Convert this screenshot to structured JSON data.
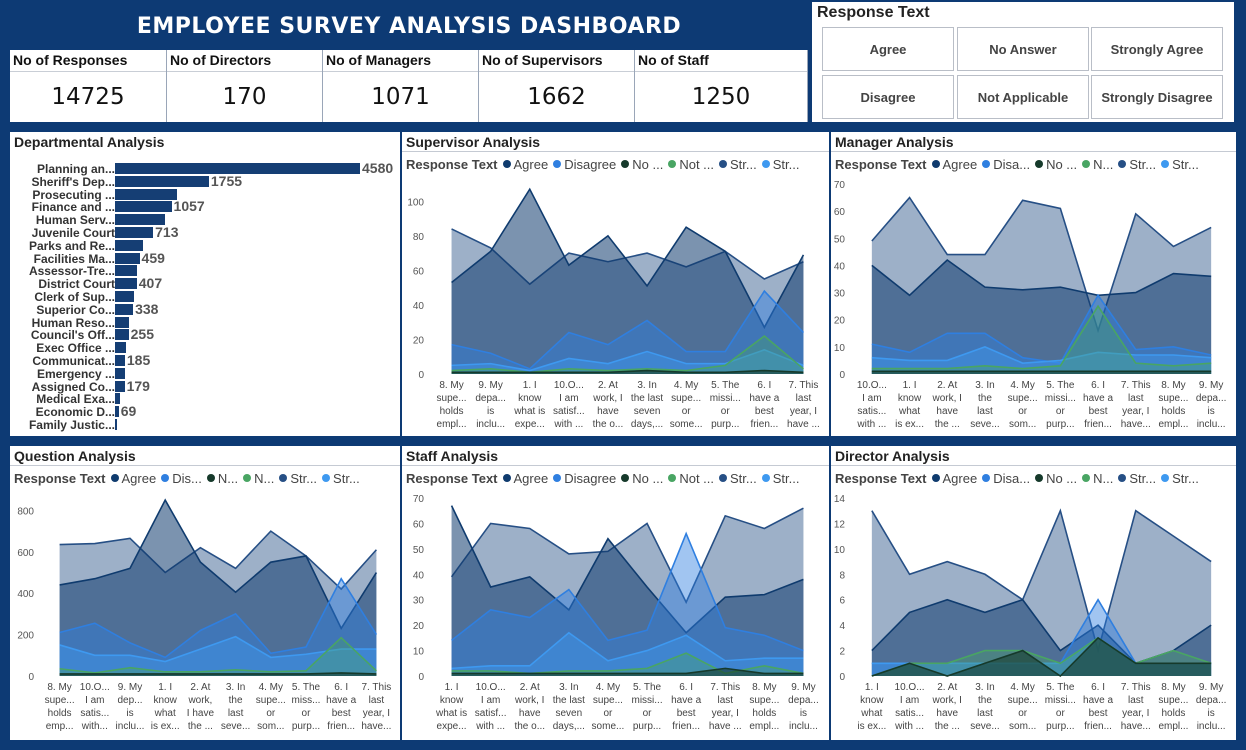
{
  "title": "EMPLOYEE SURVEY ANALYSIS DASHBOARD",
  "kpis": [
    {
      "label": "No of Responses",
      "value": "14725"
    },
    {
      "label": "No of Directors",
      "value": "170"
    },
    {
      "label": "No of Managers",
      "value": "1071"
    },
    {
      "label": "No of Supervisors",
      "value": "1662"
    },
    {
      "label": "No of Staff",
      "value": "1250"
    }
  ],
  "response_filter": {
    "title": "Response Text",
    "options": [
      "Agree",
      "No Answer",
      "Strongly Agree",
      "Disagree",
      "Not Applicable",
      "Strongly Disagree"
    ]
  },
  "colors": {
    "agree": "#0f3b6e",
    "disagree": "#2f7fe0",
    "no_answer": "#163a2b",
    "not_applicable": "#49a563",
    "strongly_agree": "#264f85",
    "strongly_disagree": "#3e99f0",
    "dept_bar": "#153e74"
  },
  "departmental": {
    "title": "Departmental Analysis",
    "rows": [
      {
        "label": "Planning an...",
        "value": 4580,
        "show": "4580"
      },
      {
        "label": "Sheriff's Dep...",
        "value": 1755,
        "show": "1755"
      },
      {
        "label": "Prosecuting ...",
        "value": 1150,
        "show": ""
      },
      {
        "label": "Finance and ...",
        "value": 1057,
        "show": "1057"
      },
      {
        "label": "Human Serv...",
        "value": 930,
        "show": ""
      },
      {
        "label": "Juvenile Court",
        "value": 713,
        "show": "713"
      },
      {
        "label": "Parks and Re...",
        "value": 520,
        "show": ""
      },
      {
        "label": "Facilities Ma...",
        "value": 459,
        "show": "459"
      },
      {
        "label": "Assessor-Tre...",
        "value": 420,
        "show": ""
      },
      {
        "label": "District Court",
        "value": 407,
        "show": "407"
      },
      {
        "label": "Clerk of Sup...",
        "value": 350,
        "show": ""
      },
      {
        "label": "Superior Co...",
        "value": 338,
        "show": "338"
      },
      {
        "label": "Human Reso...",
        "value": 270,
        "show": ""
      },
      {
        "label": "Council's Off...",
        "value": 255,
        "show": "255"
      },
      {
        "label": "Exec Office ...",
        "value": 210,
        "show": ""
      },
      {
        "label": "Communicat...",
        "value": 185,
        "show": "185"
      },
      {
        "label": "Emergency ...",
        "value": 182,
        "show": ""
      },
      {
        "label": "Assigned Co...",
        "value": 179,
        "show": "179"
      },
      {
        "label": "Medical Exa...",
        "value": 90,
        "show": ""
      },
      {
        "label": "Economic D...",
        "value": 69,
        "show": "69"
      },
      {
        "label": "Family Justic...",
        "value": 30,
        "show": ""
      }
    ]
  },
  "charts": {
    "supervisor": {
      "title": "Supervisor Analysis",
      "legend_label": "Response Text",
      "legend": [
        "Agree",
        "Disagree",
        "No ...",
        "Not ...",
        "Str...",
        "Str..."
      ],
      "yticks": [
        0,
        20,
        40,
        60,
        80,
        100
      ],
      "ymax": 110,
      "categories": [
        [
          "8. My",
          "supe...",
          "holds",
          "empl..."
        ],
        [
          "9. My",
          "depa...",
          "is",
          "inclu..."
        ],
        [
          "1. I",
          "know",
          "what is",
          "expe..."
        ],
        [
          "10.O...",
          "I am",
          "satisf...",
          "with ..."
        ],
        [
          "2. At",
          "work, I",
          "have",
          "the o..."
        ],
        [
          "3. In",
          "the last",
          "seven",
          "days,..."
        ],
        [
          "4. My",
          "supe...",
          "or",
          "some..."
        ],
        [
          "5. The",
          "missi...",
          "or",
          "purp..."
        ],
        [
          "6. I",
          "have a",
          "best",
          "frien..."
        ],
        [
          "7. This",
          "last",
          "year, I",
          "have ..."
        ]
      ],
      "series": {
        "strongly_agree": [
          84,
          73,
          52,
          70,
          65,
          70,
          62,
          71,
          55,
          65
        ],
        "agree": [
          53,
          71,
          107,
          63,
          80,
          51,
          85,
          71,
          27,
          69
        ],
        "disagree": [
          17,
          12,
          3,
          24,
          17,
          31,
          13,
          13,
          48,
          24
        ],
        "strongly_disagree": [
          5,
          6,
          2,
          9,
          6,
          13,
          6,
          6,
          14,
          5
        ],
        "not_applicable": [
          2,
          3,
          1,
          3,
          2,
          3,
          2,
          5,
          22,
          3
        ],
        "no_answer": [
          1,
          1,
          1,
          1,
          1,
          2,
          1,
          1,
          2,
          1
        ]
      }
    },
    "manager": {
      "title": "Manager Analysis",
      "legend_label": "Response Text",
      "legend": [
        "Agree",
        "Disa...",
        "No ...",
        "N...",
        "Str...",
        "Str..."
      ],
      "yticks": [
        0,
        10,
        20,
        30,
        40,
        50,
        60,
        70
      ],
      "ymax": 70,
      "categories": [
        [
          "10.O...",
          "I am",
          "satis...",
          "with ..."
        ],
        [
          "1. I",
          "know",
          "what",
          "is ex..."
        ],
        [
          "2. At",
          "work, I",
          "have",
          "the ..."
        ],
        [
          "3. In",
          "the",
          "last",
          "seve..."
        ],
        [
          "4. My",
          "supe...",
          "or",
          "som..."
        ],
        [
          "5. The",
          "missi...",
          "or",
          "purp..."
        ],
        [
          "6. I",
          "have a",
          "best",
          "frien..."
        ],
        [
          "7. This",
          "last",
          "year, I",
          "have..."
        ],
        [
          "8. My",
          "supe...",
          "holds",
          "empl..."
        ],
        [
          "9. My",
          "depa...",
          "is",
          "inclu..."
        ]
      ],
      "series": {
        "strongly_agree": [
          49,
          65,
          44,
          44,
          64,
          61,
          16,
          59,
          47,
          54
        ],
        "agree": [
          40,
          29,
          42,
          32,
          31,
          32,
          29,
          30,
          37,
          36
        ],
        "disagree": [
          11,
          8,
          15,
          15,
          6,
          4,
          29,
          9,
          10,
          7
        ],
        "strongly_disagree": [
          6,
          5,
          5,
          10,
          4,
          5,
          8,
          7,
          7,
          6
        ],
        "not_applicable": [
          2,
          2,
          2,
          3,
          2,
          3,
          25,
          4,
          3,
          4
        ],
        "no_answer": [
          1,
          1,
          1,
          1,
          1,
          1,
          1,
          1,
          1,
          1
        ]
      }
    },
    "question": {
      "title": "Question Analysis",
      "legend_label": "Response Text",
      "legend": [
        "Agree",
        "Dis...",
        "N...",
        "N...",
        "Str...",
        "Str..."
      ],
      "yticks": [
        0,
        200,
        400,
        600,
        800
      ],
      "ymax": 860,
      "categories": [
        [
          "8. My",
          "supe...",
          "holds",
          "emp..."
        ],
        [
          "10.O...",
          "I am",
          "satis...",
          "with..."
        ],
        [
          "9. My",
          "dep...",
          "is",
          "inclu..."
        ],
        [
          "1. I",
          "know",
          "what",
          "is ex..."
        ],
        [
          "2. At",
          "work,",
          "I have",
          "the ..."
        ],
        [
          "3. In",
          "the",
          "last",
          "seve..."
        ],
        [
          "4. My",
          "supe...",
          "or",
          "som..."
        ],
        [
          "5. The",
          "miss...",
          "or",
          "purp..."
        ],
        [
          "6. I",
          "have a",
          "best",
          "frien..."
        ],
        [
          "7. This",
          "last",
          "year, I",
          "have..."
        ]
      ],
      "series": {
        "strongly_agree": [
          635,
          640,
          665,
          500,
          620,
          520,
          700,
          580,
          420,
          610
        ],
        "agree": [
          440,
          470,
          520,
          850,
          550,
          405,
          550,
          580,
          230,
          500
        ],
        "disagree": [
          210,
          255,
          160,
          90,
          220,
          300,
          110,
          140,
          470,
          200
        ],
        "strongly_disagree": [
          150,
          100,
          100,
          70,
          130,
          190,
          90,
          105,
          130,
          130
        ],
        "not_applicable": [
          35,
          15,
          40,
          20,
          20,
          30,
          20,
          25,
          185,
          25
        ],
        "no_answer": [
          10,
          10,
          10,
          10,
          10,
          10,
          10,
          10,
          15,
          10
        ]
      }
    },
    "staff": {
      "title": "Staff Analysis",
      "legend_label": "Response Text",
      "legend": [
        "Agree",
        "Disagree",
        "No ...",
        "Not ...",
        "Str...",
        "Str..."
      ],
      "yticks": [
        0,
        10,
        20,
        30,
        40,
        50,
        60,
        70
      ],
      "ymax": 70,
      "categories": [
        [
          "1. I",
          "know",
          "what is",
          "expe..."
        ],
        [
          "10.O...",
          "I am",
          "satisf...",
          "with ..."
        ],
        [
          "2. At",
          "work, I",
          "have",
          "the o..."
        ],
        [
          "3. In",
          "the last",
          "seven",
          "days,..."
        ],
        [
          "4. My",
          "supe...",
          "or",
          "some..."
        ],
        [
          "5. The",
          "missi...",
          "or",
          "purp..."
        ],
        [
          "6. I",
          "have a",
          "best",
          "frien..."
        ],
        [
          "7. This",
          "last",
          "year, I",
          "have ..."
        ],
        [
          "8. My",
          "supe...",
          "holds",
          "empl..."
        ],
        [
          "9. My",
          "depa...",
          "is",
          "inclu..."
        ]
      ],
      "series": {
        "strongly_agree": [
          39,
          60,
          58,
          48,
          49,
          60,
          29,
          63,
          58,
          66
        ],
        "agree": [
          67,
          35,
          39,
          26,
          54,
          35,
          17,
          31,
          32,
          38
        ],
        "disagree": [
          14,
          26,
          23,
          34,
          14,
          18,
          56,
          19,
          16,
          10
        ],
        "strongly_disagree": [
          3,
          4,
          4,
          17,
          6,
          10,
          16,
          6,
          7,
          7
        ],
        "not_applicable": [
          2,
          2,
          1,
          2,
          2,
          3,
          9,
          1,
          4,
          1
        ],
        "no_answer": [
          1,
          1,
          1,
          1,
          1,
          1,
          1,
          3,
          1,
          1
        ]
      }
    },
    "director": {
      "title": "Director Analysis",
      "legend_label": "Response Text",
      "legend": [
        "Agree",
        "Disa...",
        "No ...",
        "N...",
        "Str...",
        "Str..."
      ],
      "yticks": [
        0,
        2,
        4,
        6,
        8,
        10,
        12,
        14
      ],
      "ymax": 14,
      "categories": [
        [
          "1. I",
          "know",
          "what",
          "is ex..."
        ],
        [
          "10.O...",
          "I am",
          "satis...",
          "with ..."
        ],
        [
          "2. At",
          "work, I",
          "have",
          "the ..."
        ],
        [
          "3. In",
          "the",
          "last",
          "seve..."
        ],
        [
          "4. My",
          "supe...",
          "or",
          "som..."
        ],
        [
          "5. The",
          "missi...",
          "or",
          "purp..."
        ],
        [
          "6. I",
          "have a",
          "best",
          "frien..."
        ],
        [
          "7. This",
          "last",
          "year, I",
          "have..."
        ],
        [
          "8. My",
          "supe...",
          "holds",
          "empl..."
        ],
        [
          "9. My",
          "depa...",
          "is",
          "inclu..."
        ]
      ],
      "series": {
        "strongly_agree": [
          13,
          8,
          9,
          8,
          6,
          13,
          2,
          13,
          11,
          9
        ],
        "agree": [
          2,
          5,
          6,
          5,
          6,
          2,
          4,
          1,
          2,
          4
        ],
        "disagree": [
          1,
          1,
          1,
          1,
          1,
          1,
          6,
          1,
          1,
          1
        ],
        "strongly_disagree": [
          1,
          1,
          1,
          1,
          1,
          1,
          3,
          1,
          1,
          1
        ],
        "not_applicable": [
          0,
          1,
          1,
          2,
          2,
          1,
          3,
          1,
          2,
          1
        ],
        "no_answer": [
          0,
          1,
          0,
          1,
          2,
          0,
          3,
          1,
          1,
          1
        ]
      }
    }
  }
}
